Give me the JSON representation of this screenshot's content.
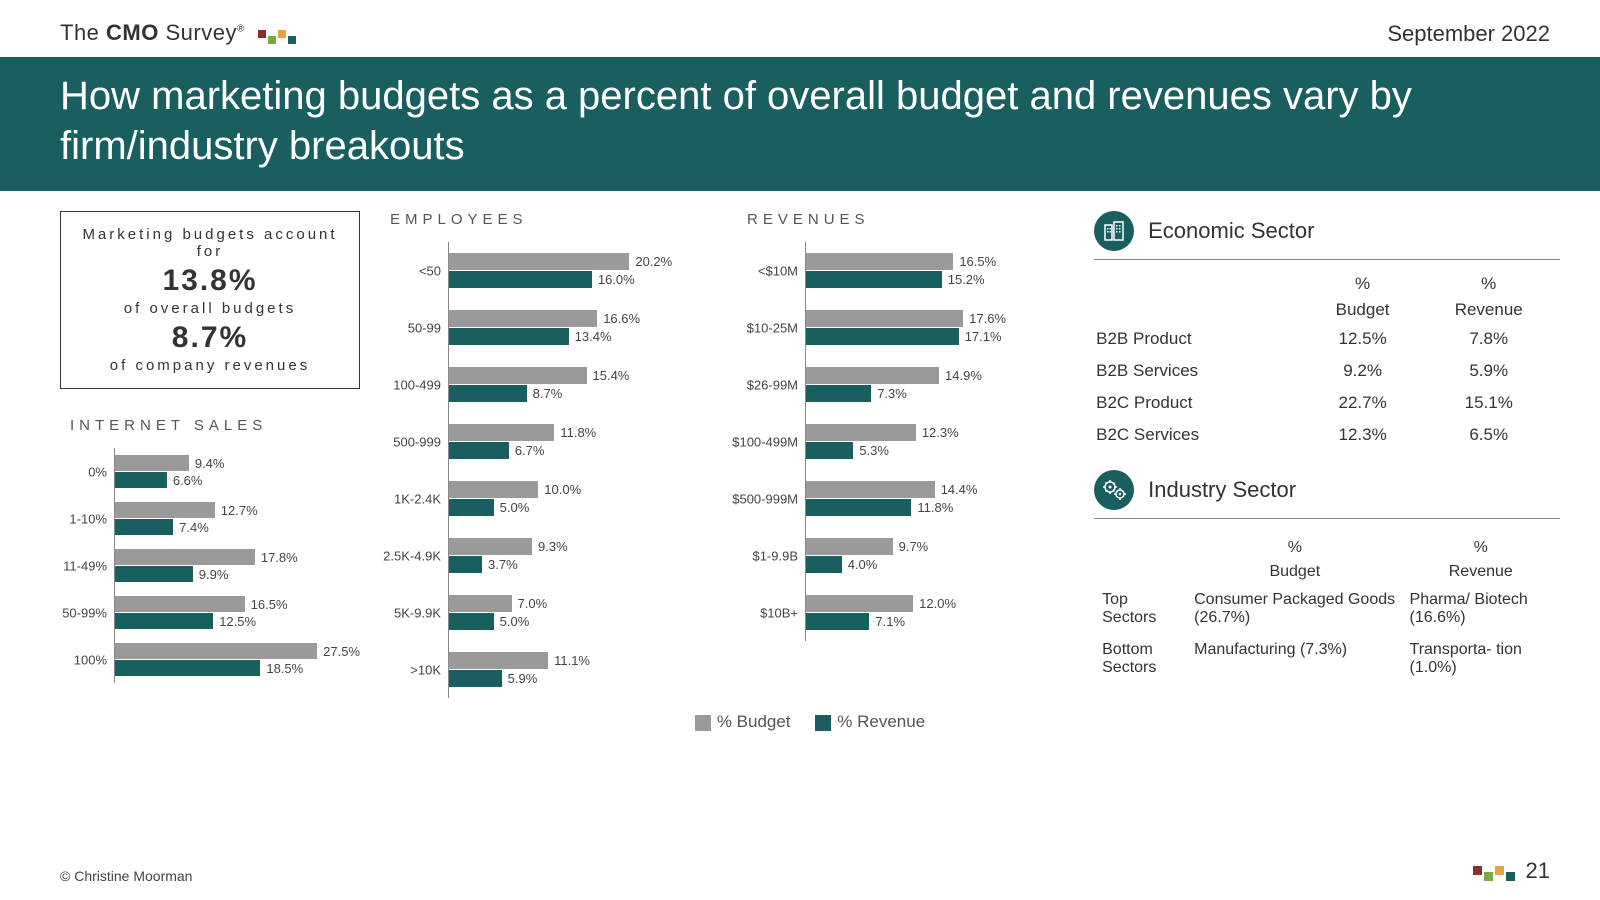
{
  "logo": {
    "pre": "The ",
    "bold": "CMO ",
    "post": "Survey",
    "reg": "®"
  },
  "logo_dot_colors": [
    "#8b2e2e",
    "#7aa843",
    "#e8a33d",
    "#1a5f5f"
  ],
  "date": "September 2022",
  "title": "How marketing budgets as a percent of overall budget and revenues vary by firm/industry breakouts",
  "title_bar_color": "#1a5f5f",
  "stat_box": {
    "line1": "Marketing budgets account for",
    "big1": "13.8%",
    "line2": "of overall budgets",
    "big2": "8.7%",
    "line3": "of company revenues"
  },
  "colors": {
    "budget": "#9a9a9a",
    "revenue": "#1a5f5f"
  },
  "legend": {
    "budget": "% Budget",
    "revenue": "% Revenue"
  },
  "max_scale": 28,
  "charts": {
    "internet_sales": {
      "title": "INTERNET SALES",
      "rows": [
        {
          "cat": "0%",
          "budget": 9.4,
          "revenue": 6.6
        },
        {
          "cat": "1-10%",
          "budget": 12.7,
          "revenue": 7.4
        },
        {
          "cat": "11-49%",
          "budget": 17.8,
          "revenue": 9.9
        },
        {
          "cat": "50-99%",
          "budget": 16.5,
          "revenue": 12.5
        },
        {
          "cat": "100%",
          "budget": 27.5,
          "revenue": 18.5
        }
      ]
    },
    "employees": {
      "title": "EMPLOYEES",
      "rows": [
        {
          "cat": "<50",
          "budget": 20.2,
          "revenue": 16.0
        },
        {
          "cat": "50-99",
          "budget": 16.6,
          "revenue": 13.4
        },
        {
          "cat": "100-499",
          "budget": 15.4,
          "revenue": 8.7
        },
        {
          "cat": "500-999",
          "budget": 11.8,
          "revenue": 6.7
        },
        {
          "cat": "1K-2.4K",
          "budget": 10.0,
          "revenue": 5.0
        },
        {
          "cat": "2.5K-4.9K",
          "budget": 9.3,
          "revenue": 3.7
        },
        {
          "cat": "5K-9.9K",
          "budget": 7.0,
          "revenue": 5.0
        },
        {
          "cat": ">10K",
          "budget": 11.1,
          "revenue": 5.9
        }
      ]
    },
    "revenues": {
      "title": "REVENUES",
      "rows": [
        {
          "cat": "<$10M",
          "budget": 16.5,
          "revenue": 15.2
        },
        {
          "cat": "$10-25M",
          "budget": 17.6,
          "revenue": 17.1
        },
        {
          "cat": "$26-99M",
          "budget": 14.9,
          "revenue": 7.3
        },
        {
          "cat": "$100-499M",
          "budget": 12.3,
          "revenue": 5.3
        },
        {
          "cat": "$500-999M",
          "budget": 14.4,
          "revenue": 11.8
        },
        {
          "cat": "$1-9.9B",
          "budget": 9.7,
          "revenue": 4.0
        },
        {
          "cat": "$10B+",
          "budget": 12.0,
          "revenue": 7.1
        }
      ]
    }
  },
  "economic_sector": {
    "title": "Economic Sector",
    "col1": "% Budget",
    "col2": "% Revenue",
    "rows": [
      {
        "name": "B2B Product",
        "budget": "12.5%",
        "revenue": "7.8%"
      },
      {
        "name": "B2B Services",
        "budget": "9.2%",
        "revenue": "5.9%"
      },
      {
        "name": "B2C Product",
        "budget": "22.7%",
        "revenue": "15.1%"
      },
      {
        "name": "B2C Services",
        "budget": "12.3%",
        "revenue": "6.5%"
      }
    ]
  },
  "industry_sector": {
    "title": "Industry Sector",
    "col1": "% Budget",
    "col2": "% Revenue",
    "top_label": "Top Sectors",
    "top_budget": "Consumer Packaged Goods (26.7%)",
    "top_revenue": "Pharma/ Biotech (16.6%)",
    "bottom_label": "Bottom Sectors",
    "bottom_budget": "Manufacturing (7.3%)",
    "bottom_revenue": "Transporta- tion (1.0%)"
  },
  "copyright": "© Christine Moorman",
  "page_number": "21"
}
